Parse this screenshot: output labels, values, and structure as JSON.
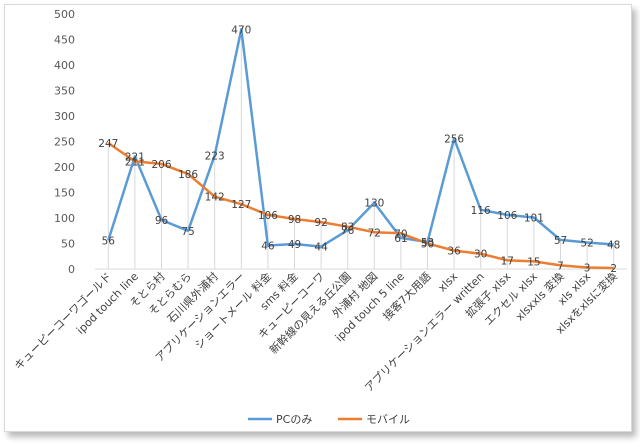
{
  "chart_data": {
    "type": "line",
    "title": "",
    "xlabel": "",
    "ylabel": "",
    "ylim": [
      0,
      500
    ],
    "yticks": [
      0,
      50,
      100,
      150,
      200,
      250,
      300,
      350,
      400,
      450,
      500
    ],
    "grid": "vertical drop lines",
    "legend_position": "bottom-center",
    "categories": [
      "キューピーコーワゴールド",
      "ipod touch line",
      "そとら村",
      "そとらむら",
      "石川県外浦村",
      "アプリケーションエラー",
      "ショートメール 料金",
      "sms 料金",
      "キューピーコーワ",
      "新幹線の見える丘公園",
      "外浦村 地図",
      "ipod touch 5 line",
      "接客7大用語",
      "xlsx",
      "アプリケーションエラー written",
      "拡張子 xlsx",
      "エクセル xlsx",
      "xlsxxls 変換",
      "xls xlsx",
      "xlsxをxlsに変換"
    ],
    "series": [
      {
        "name": "PCのみ",
        "color": "#5b9bd5",
        "values": [
          56,
          221,
          96,
          75,
          223,
          470,
          46,
          49,
          44,
          76,
          130,
          61,
          53,
          256,
          116,
          106,
          101,
          57,
          52,
          48
        ]
      },
      {
        "name": "モバイル",
        "color": "#ed7d31",
        "values": [
          247,
          211,
          206,
          186,
          142,
          127,
          106,
          98,
          92,
          83,
          72,
          70,
          50,
          36,
          30,
          17,
          15,
          7,
          3,
          2
        ]
      }
    ]
  }
}
